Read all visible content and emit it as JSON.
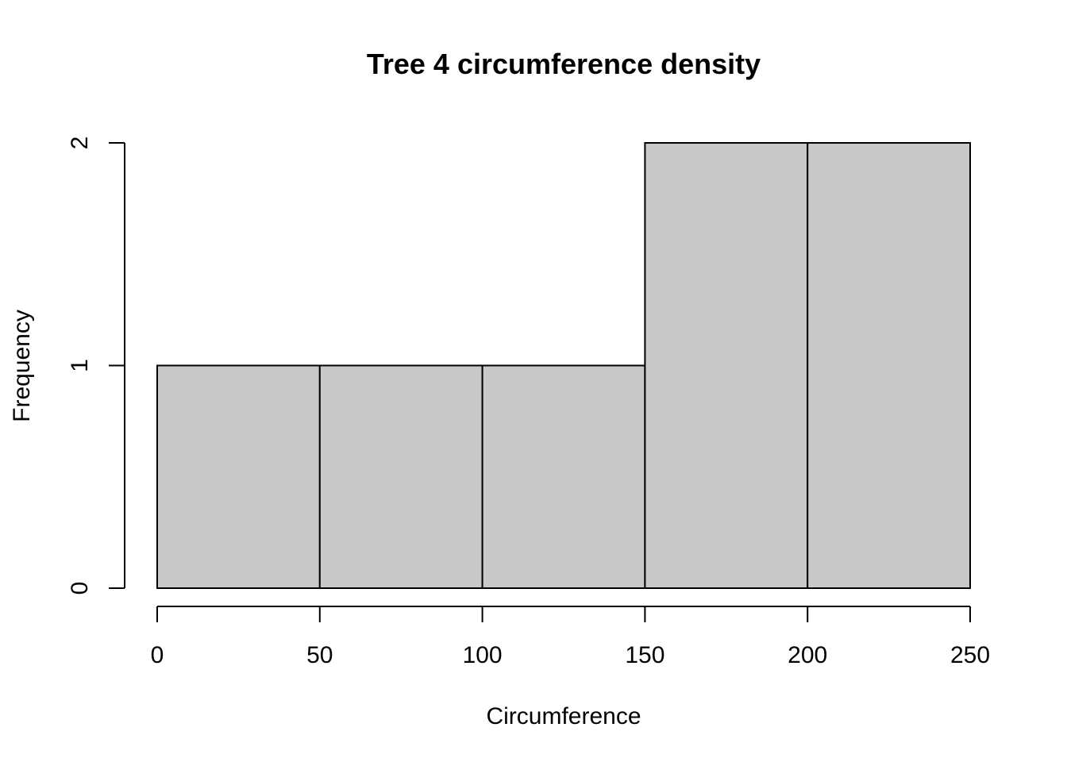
{
  "chart_data": {
    "type": "bar",
    "title": "Tree 4  circumference density",
    "xlabel": "Circumference",
    "ylabel": "Frequency",
    "bins": [
      {
        "from": 0,
        "to": 50,
        "count": 1
      },
      {
        "from": 50,
        "to": 100,
        "count": 1
      },
      {
        "from": 100,
        "to": 150,
        "count": 1
      },
      {
        "from": 150,
        "to": 200,
        "count": 2
      },
      {
        "from": 200,
        "to": 250,
        "count": 2
      }
    ],
    "xlim": [
      0,
      250
    ],
    "ylim": [
      0,
      2
    ],
    "x_ticks": [
      0,
      50,
      100,
      150,
      200,
      250
    ],
    "y_ticks": [
      0,
      1,
      2
    ],
    "bar_color": "#c8c8c8",
    "grid": false
  }
}
